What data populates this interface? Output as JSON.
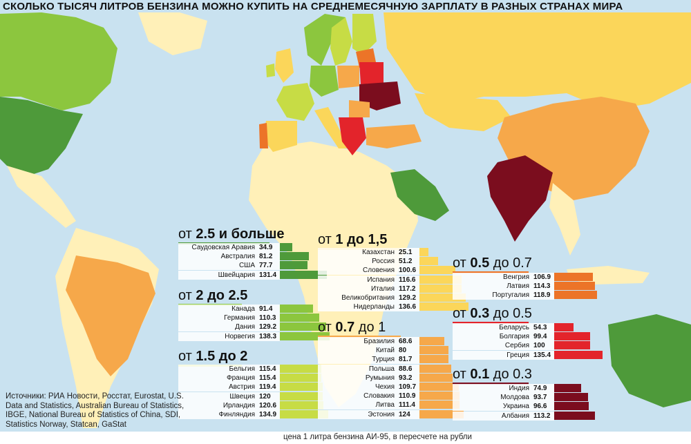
{
  "title": "СКОЛЬКО ТЫСЯЧ ЛИТРОВ БЕНЗИНА МОЖНО КУПИТЬ НА СРЕДНЕМЕСЯЧНУЮ ЗАРПЛАТУ В РАЗНЫХ СТРАНАХ МИРА",
  "sources": "Источники: РИА Новости, Росстат, Eurostat, U.S. Data and Statistics, Australian Bureau of Statistics, IBGE, National Bureau of Statistics of China, SDI, Statistics Norway, Statcan, GaStat",
  "footer": "цена 1 литра бензина АИ-95, в пересчете на рубли",
  "colors": {
    "sea": "#c9e2f0",
    "land": "#fff0b8",
    "g25": "#4e9a3a",
    "g2": "#8cc63e",
    "g15": "#c7dc45",
    "g1": "#fbd65a",
    "g07": "#f6a84a",
    "g05": "#ec7428",
    "g03": "#e3242b",
    "g01": "#7b0d1e"
  },
  "chart_data": {
    "type": "bar",
    "groups": [
      {
        "title_pre": "от ",
        "title_bold": "2.5 и больше",
        "title_post": "",
        "color": "#4e9a3a",
        "categories": [
          "Саудовская Аравия",
          "Австралия",
          "США",
          "Швейцария"
        ],
        "values": [
          34.9,
          81.2,
          77.7,
          131.4
        ]
      },
      {
        "title_pre": "от ",
        "title_bold": "2 до 2.5",
        "title_post": "",
        "color": "#8cc63e",
        "categories": [
          "Канада",
          "Германия",
          "Дания",
          "Норвегия"
        ],
        "values": [
          91.4,
          110.3,
          129.2,
          138.3
        ]
      },
      {
        "title_pre": "от ",
        "title_bold": "1.5 до 2",
        "title_post": "",
        "color": "#c7dc45",
        "categories": [
          "Бельгия",
          "Франция",
          "Австрия",
          "Швеция",
          "Ирландия",
          "Финляндия"
        ],
        "values": [
          115.4,
          115.4,
          119.4,
          120,
          120.6,
          134.9
        ]
      },
      {
        "title_pre": "от ",
        "title_bold": "1 до 1,5",
        "title_post": "",
        "color": "#fbd65a",
        "categories": [
          "Казахстан",
          "Россия",
          "Словения",
          "Испания",
          "Италия",
          "Великобритания",
          "Нидерланды"
        ],
        "values": [
          25.1,
          51.2,
          100.6,
          116.6,
          117.2,
          129.2,
          136.6
        ]
      },
      {
        "title_pre": "от ",
        "title_bold": "0.7",
        "title_post": " до 1",
        "color": "#f6a84a",
        "categories": [
          "Бразилия",
          "Китай",
          "Турция",
          "Польша",
          "Румыния",
          "Чехия",
          "Словакия",
          "Литва",
          "Эстония"
        ],
        "values": [
          68.6,
          80,
          81.7,
          88.6,
          93.2,
          109.7,
          110.9,
          111.4,
          124
        ]
      },
      {
        "title_pre": "от ",
        "title_bold": "0.5",
        "title_post": " до 0.7",
        "color": "#ec7428",
        "categories": [
          "Венгрия",
          "Латвия",
          "Португалия"
        ],
        "values": [
          106.9,
          114.3,
          118.9
        ]
      },
      {
        "title_pre": "от ",
        "title_bold": "0.3",
        "title_post": " до 0.5",
        "color": "#e3242b",
        "categories": [
          "Беларусь",
          "Болгария",
          "Сербия",
          "Греция"
        ],
        "values": [
          54.3,
          99.4,
          100,
          135.4
        ]
      },
      {
        "title_pre": "от ",
        "title_bold": "0.1",
        "title_post": " до 0.3",
        "color": "#7b0d1e",
        "categories": [
          "Индия",
          "Молдова",
          "Украина",
          "Албания"
        ],
        "values": [
          74.9,
          93.7,
          96.6,
          113.2
        ]
      }
    ]
  }
}
